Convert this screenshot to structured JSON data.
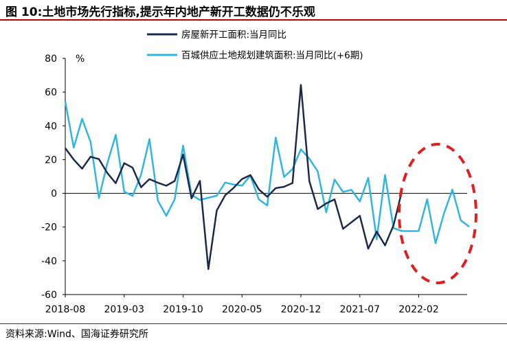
{
  "header": {
    "title": "图 10:土地市场先行指标,提示年内地产新开工数据仍不乐观"
  },
  "footer": {
    "source": "资料来源:Wind、国海证券研究所"
  },
  "chart_data": {
    "type": "line",
    "ylabel": "%",
    "ylim": [
      -60,
      80
    ],
    "yticks": [
      -60,
      -40,
      -20,
      0,
      20,
      40,
      60,
      80
    ],
    "x_tick_labels": [
      "2018-08",
      "2019-03",
      "2019-10",
      "2020-05",
      "2020-12",
      "2021-07",
      "2022-02"
    ],
    "x_start": "2018-08",
    "legend_position": "top-right",
    "grid": false,
    "series": [
      {
        "name": "房屋新开工面积:当月同比",
        "color": "#1b2a4a",
        "start": "2018-08",
        "values": [
          26.8,
          20,
          14.6,
          21.7,
          20.3,
          12,
          6,
          17.9,
          15.2,
          3.6,
          8.4,
          6.3,
          4.5,
          7.3,
          23,
          -3,
          7.4,
          -44.9,
          -10.2,
          -1.1,
          3.2,
          8.5,
          10.8,
          2.3,
          -2,
          3.1,
          3.9,
          6.1,
          64.3,
          7.2,
          -9.3,
          -6,
          -3.6,
          -21,
          -17.2,
          -13.3,
          -32.8,
          -22.7,
          -30.8,
          -19,
          1.3
        ]
      },
      {
        "name": "百城供应土地规划建筑面积:当月同比(+6期)",
        "color": "#2eb6e3",
        "start": "2018-08",
        "values": [
          54.4,
          27,
          44.2,
          30.5,
          -2.8,
          17.9,
          34.7,
          1,
          -1.5,
          11,
          32.1,
          -4.3,
          -13.3,
          -3.5,
          28.3,
          -1,
          -3.9,
          -2.6,
          -1.4,
          6.4,
          5.2,
          4.6,
          10.5,
          -3.6,
          -7.2,
          33,
          9.7,
          14.4,
          26.1,
          20.5,
          13,
          -11.3,
          8.2,
          0.8,
          2.1,
          -4.8,
          9.2,
          -27.2,
          10.9,
          -20.6,
          -22.3,
          -22.4,
          -22.3,
          -3.5,
          -29.6,
          -11.9,
          2.2,
          -16,
          -19.8
        ]
      }
    ]
  },
  "annotation": {
    "shape": "dashed-ellipse",
    "color": "#e02020"
  }
}
